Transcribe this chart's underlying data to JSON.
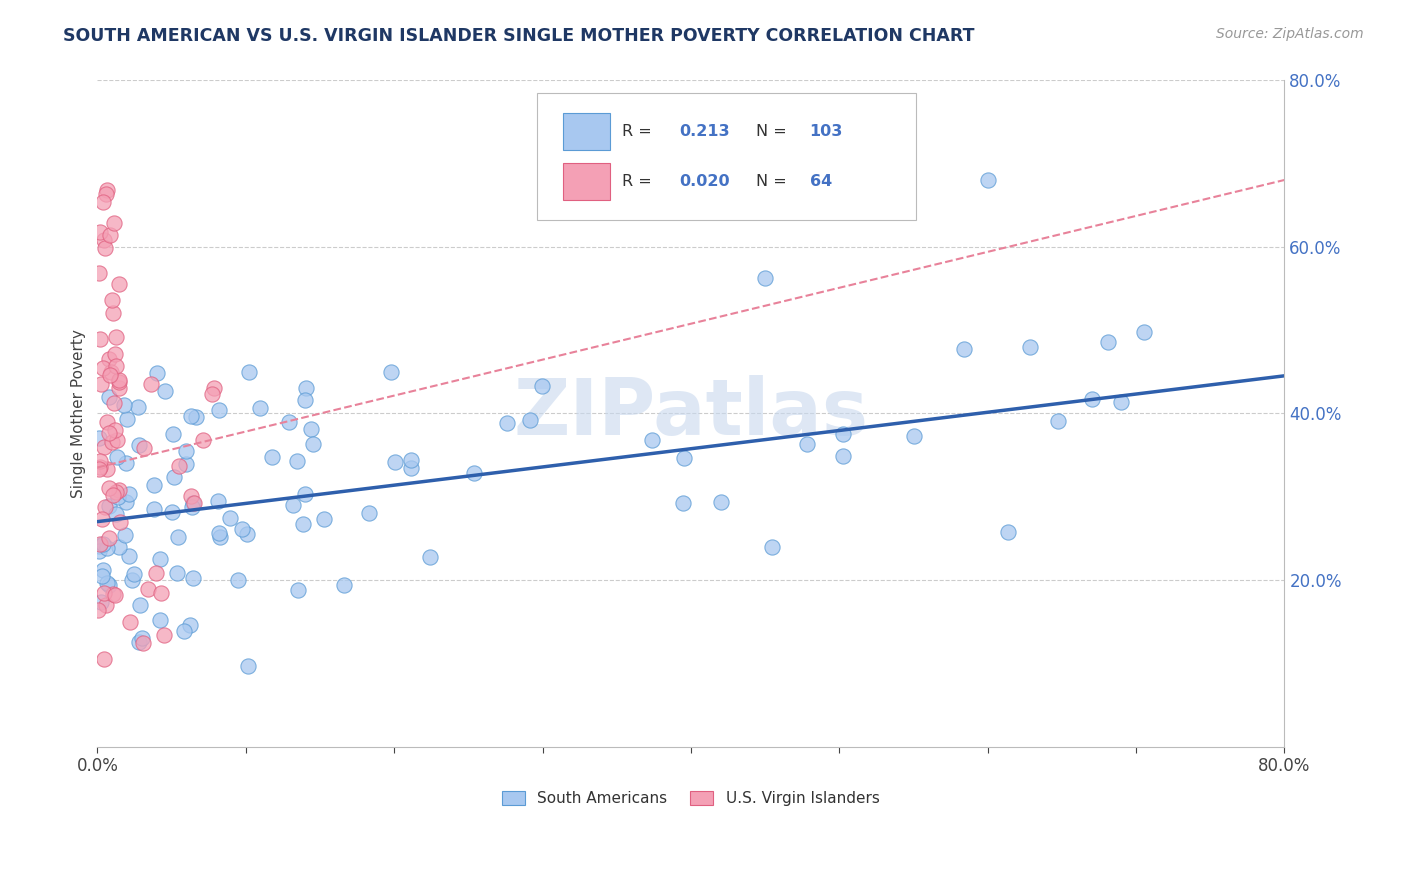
{
  "title": "SOUTH AMERICAN VS U.S. VIRGIN ISLANDER SINGLE MOTHER POVERTY CORRELATION CHART",
  "source": "Source: ZipAtlas.com",
  "ylabel": "Single Mother Poverty",
  "xlim": [
    0.0,
    0.8
  ],
  "ylim": [
    0.0,
    0.8
  ],
  "yticks_right": [
    0.2,
    0.4,
    0.6,
    0.8
  ],
  "yticklabels_right": [
    "20.0%",
    "40.0%",
    "60.0%",
    "80.0%"
  ],
  "blue_fill": "#A8C8F0",
  "blue_edge": "#5B9BD5",
  "pink_fill": "#F4A0B5",
  "pink_edge": "#E06080",
  "blue_line_color": "#2E5FAC",
  "pink_line_color": "#E8829A",
  "title_color": "#1F3864",
  "source_color": "#999999",
  "axis_label_color": "#4472C4",
  "watermark": "ZIPatlas",
  "legend_R1": "0.213",
  "legend_N1": "103",
  "legend_R2": "0.020",
  "legend_N2": "64",
  "series1_label": "South Americans",
  "series2_label": "U.S. Virgin Islanders",
  "grid_color": "#CCCCCC",
  "background_color": "#FFFFFF",
  "blue_trend_start_y": 0.27,
  "blue_trend_end_y": 0.445,
  "pink_trend_start_y": 0.335,
  "pink_trend_end_y": 0.68
}
